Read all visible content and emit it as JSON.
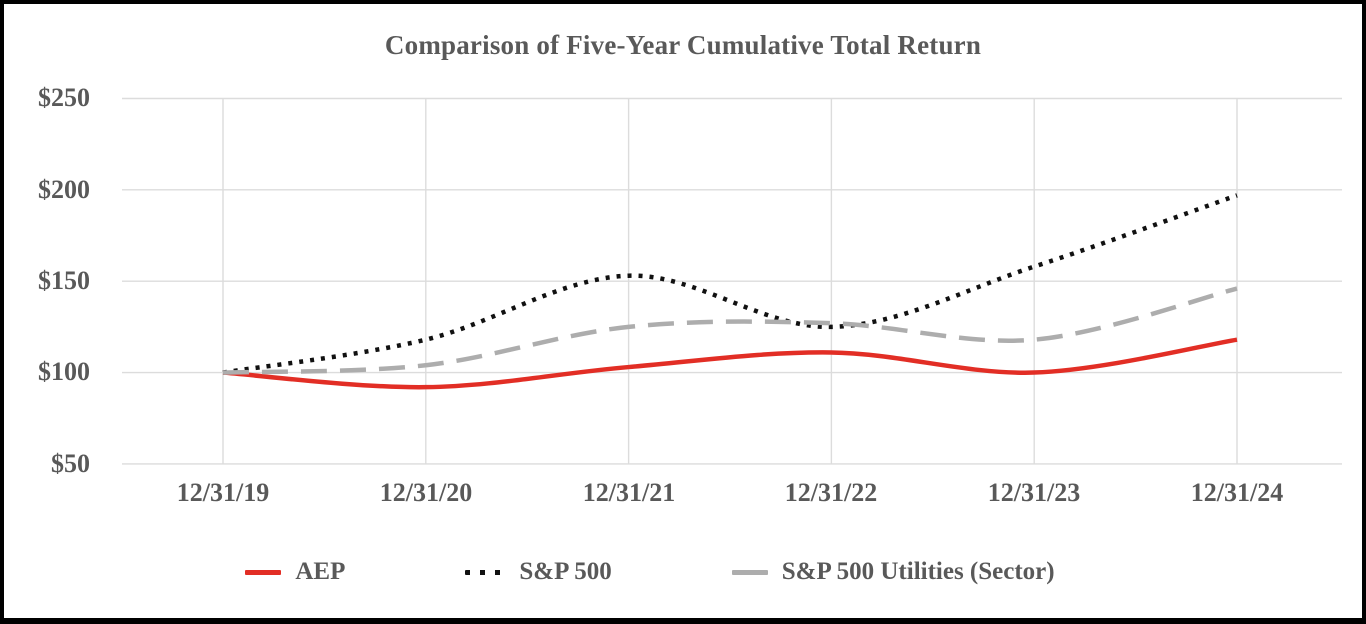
{
  "title": "Comparison of Five-Year Cumulative Total Return",
  "colors": {
    "aep_red": "#e22e25",
    "sp500_black": "#111111",
    "utilities_gray": "#adadad",
    "text_gray": "#595959",
    "gridline_gray": "#dcdcdc",
    "border_black": "#000000"
  },
  "chart_data": {
    "type": "line",
    "title": "Comparison of Five-Year Cumulative Total Return",
    "x_labels": [
      "12/31/19",
      "12/31/20",
      "12/31/21",
      "12/31/22",
      "12/31/23",
      "12/31/24"
    ],
    "y_tick_labels": [
      "$250",
      "$200",
      "$150",
      "$100",
      "$50"
    ],
    "y_ticks": [
      250,
      200,
      150,
      100,
      50
    ],
    "ylim": [
      50,
      250
    ],
    "grid": true,
    "smoothed_lines": true,
    "legend_position": "bottom",
    "series": [
      {
        "name": "AEP",
        "style": "solid",
        "color": "#e22e25",
        "values": [
          100,
          92,
          103,
          111,
          100,
          118
        ]
      },
      {
        "name": "S&P 500",
        "style": "dotted",
        "color": "#111111",
        "values": [
          100,
          118,
          153,
          125,
          158,
          197
        ]
      },
      {
        "name": "S&P 500 Utilities (Sector)",
        "style": "dashed",
        "color": "#adadad",
        "values": [
          100,
          104,
          125,
          127,
          118,
          146
        ]
      }
    ]
  }
}
